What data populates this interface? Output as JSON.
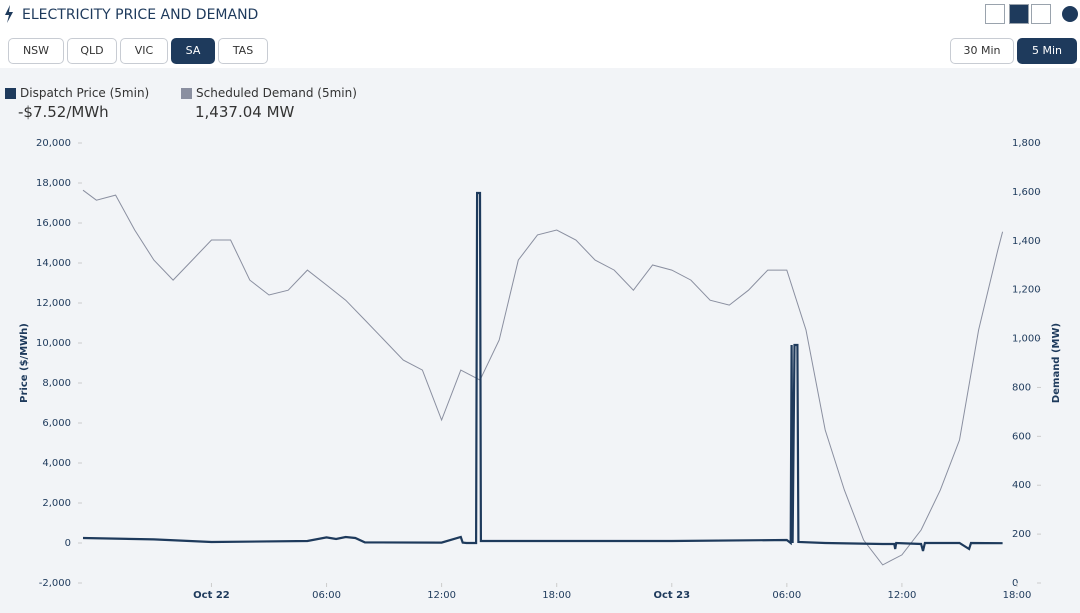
{
  "header": {
    "title": "ELECTRICITY PRICE AND DEMAND"
  },
  "regions": [
    "NSW",
    "QLD",
    "VIC",
    "SA",
    "TAS"
  ],
  "active_region": "SA",
  "intervals": [
    "30 Min",
    "5 Min"
  ],
  "active_interval": "5 Min",
  "readouts": [
    "-$7.52/MWh",
    "1,437.04 MW"
  ],
  "chart_data": {
    "type": "line",
    "ylabel": "Price ($/MWh)",
    "y2label": "Demand (MW)",
    "xlim": [
      -6.75,
      42
    ],
    "xticks": [
      {
        "value": 0,
        "label": "Oct 22"
      },
      {
        "value": 6,
        "label": "06:00"
      },
      {
        "value": 12,
        "label": "12:00"
      },
      {
        "value": 18,
        "label": "18:00"
      },
      {
        "value": 24,
        "label": "Oct 23"
      },
      {
        "value": 30,
        "label": "06:00"
      },
      {
        "value": 36,
        "label": "12:00"
      },
      {
        "value": 42,
        "label": "18:00"
      }
    ],
    "ylim": [
      -2000,
      20000
    ],
    "yticks": [
      {
        "value": -2000,
        "label": "-2,000"
      },
      0,
      {
        "value": 2000,
        "label": "2,000"
      },
      {
        "value": 4000,
        "label": "4,000"
      },
      {
        "value": 6000,
        "label": "6,000"
      },
      {
        "value": 8000,
        "label": "8,000"
      },
      {
        "value": 10000,
        "label": "10,000"
      },
      {
        "value": 12000,
        "label": "12,000"
      },
      {
        "value": 14000,
        "label": "14,000"
      },
      {
        "value": 16000,
        "label": "16,000"
      },
      {
        "value": 18000,
        "label": "18,000"
      },
      {
        "value": 20000,
        "label": "20,000"
      }
    ],
    "y2lim": [
      0,
      1800
    ],
    "y2ticks": [
      0,
      200,
      400,
      600,
      800,
      {
        "value": 1000,
        "label": "1,000"
      },
      {
        "value": 1200,
        "label": "1,200"
      },
      {
        "value": 1400,
        "label": "1,400"
      },
      {
        "value": 1600,
        "label": "1,600"
      },
      {
        "value": 1800,
        "label": "1,800"
      }
    ],
    "series": [
      {
        "name": "Dispatch Price (5min)",
        "color": "#1e3a5c",
        "x": [
          -6.7,
          -3,
          0,
          5,
          6,
          6.5,
          7,
          7.5,
          8,
          12,
          13,
          13.1,
          13.3,
          13.8,
          13.85,
          14.0,
          14.05,
          18,
          24,
          30,
          30.2,
          30.25,
          30.3,
          30.4,
          30.55,
          30.6,
          32,
          35,
          35.6,
          35.65,
          35.7,
          37,
          37.1,
          37.2,
          39,
          39.5,
          39.6,
          41.25
        ],
        "values": [
          250,
          180,
          50,
          100,
          280,
          200,
          300,
          250,
          30,
          20,
          300,
          20,
          0,
          0,
          17500,
          17500,
          100,
          100,
          100,
          150,
          0,
          9900,
          0,
          9900,
          9900,
          50,
          0,
          -50,
          -50,
          -300,
          0,
          -50,
          -400,
          0,
          0,
          -300,
          0,
          -7.52
        ]
      },
      {
        "name": "Scheduled Demand (5min)",
        "color": "#8a8fa0",
        "axis": "y2",
        "x": [
          -6.7,
          -6,
          -5,
          -4,
          -3,
          -2,
          -1,
          0,
          1,
          2,
          3,
          4,
          5,
          6,
          7,
          8,
          9,
          10,
          11,
          12,
          13,
          14,
          15,
          16,
          17,
          18,
          19,
          20,
          21,
          22,
          23,
          24,
          25,
          26,
          27,
          28,
          29,
          30,
          31,
          32,
          33,
          34,
          35,
          36,
          37,
          38,
          39,
          40,
          41,
          41.25
        ],
        "values": [
          1607,
          1566,
          1587,
          1444,
          1321,
          1239,
          1321,
          1403,
          1403,
          1239,
          1178,
          1198,
          1280,
          1219,
          1157,
          1076,
          994,
          912,
          871,
          667,
          871,
          830,
          994,
          1321,
          1424,
          1444,
          1403,
          1321,
          1280,
          1198,
          1301,
          1280,
          1239,
          1157,
          1137,
          1198,
          1280,
          1280,
          1035,
          626,
          380,
          176,
          74,
          115,
          217,
          380,
          585,
          1035,
          1362,
          1437.04
        ]
      }
    ]
  }
}
